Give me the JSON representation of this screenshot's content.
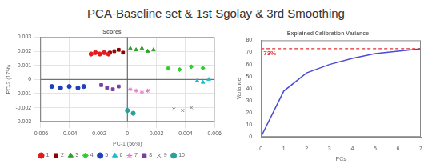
{
  "title": "PCA-Baseline set & 1st Sgolay & 3rd Smoothing",
  "chart_data": [
    {
      "type": "scatter",
      "title": "Scores",
      "x_label": "PC-1 (56%)",
      "y_label": "PC-2 (17%)",
      "xlim": [
        -0.006,
        0.006
      ],
      "xticks": [
        -0.006,
        -0.004,
        -0.002,
        0,
        0.002,
        0.004,
        0.006
      ],
      "ylim": [
        -0.003,
        0.003
      ],
      "yticks": [
        -0.003,
        -0.002,
        -0.001,
        0,
        0.001,
        0.002,
        0.003
      ],
      "grid": true,
      "legend": "bottom",
      "series": [
        {
          "name": "1",
          "color": "#e41a1c",
          "marker": "circle",
          "x": [
            -0.0025,
            -0.0022,
            -0.0019,
            -0.0016,
            -0.0013
          ],
          "values": [
            0.0018,
            0.0019,
            0.0018,
            0.0019,
            0.0018
          ]
        },
        {
          "name": "2",
          "color": "#8b0000",
          "marker": "square",
          "x": [
            -0.0012,
            -0.0009,
            -0.0006,
            -0.0003
          ],
          "values": [
            0.0019,
            0.002,
            0.0021,
            0.0019
          ]
        },
        {
          "name": "3",
          "color": "#2ca02c",
          "marker": "triangle",
          "x": [
            0.0002,
            0.0006,
            0.001,
            0.0014,
            0.0018
          ],
          "values": [
            0.0022,
            0.0021,
            0.0022,
            0.002,
            0.0021
          ]
        },
        {
          "name": "4",
          "color": "#33cc33",
          "marker": "diamond",
          "x": [
            0.0028,
            0.0036,
            0.0044,
            0.0052
          ],
          "values": [
            0.0008,
            0.0007,
            0.0009,
            0.0008
          ]
        },
        {
          "name": "5",
          "color": "#1f3fbf",
          "marker": "circle",
          "x": [
            -0.0052,
            -0.0046,
            -0.004,
            -0.0034,
            -0.003
          ],
          "values": [
            -0.0005,
            -0.0006,
            -0.0005,
            -0.0006,
            -0.0005
          ]
        },
        {
          "name": "6",
          "color": "#17becf",
          "marker": "triangle",
          "x": [
            0.0048,
            0.0052,
            0.0056
          ],
          "values": [
            -0.0001,
            -0.0002,
            0
          ]
        },
        {
          "name": "7",
          "color": "#e377c2",
          "marker": "star",
          "x": [
            0.0002,
            0.0006,
            0.001,
            0.0014
          ],
          "values": [
            -0.0007,
            -0.0008,
            -0.0009,
            -0.0008
          ]
        },
        {
          "name": "8",
          "color": "#7b3fa0",
          "marker": "square",
          "x": [
            -0.0018,
            -0.0014,
            -0.001,
            -0.0006
          ],
          "values": [
            -0.0004,
            -0.0006,
            -0.0007,
            -0.0005
          ]
        },
        {
          "name": "9",
          "color": "#7f7f7f",
          "marker": "cross",
          "x": [
            0.0032,
            0.0038,
            0.0044
          ],
          "values": [
            -0.0021,
            -0.0022,
            -0.002
          ]
        },
        {
          "name": "10",
          "color": "#2aa198",
          "marker": "circle",
          "x": [
            0,
            0.0004
          ],
          "values": [
            -0.0022,
            -0.0024
          ]
        }
      ]
    },
    {
      "type": "line",
      "title": "Explained Calibration Variance",
      "x_label": "PCs",
      "y_label": "Variance",
      "x": [
        0,
        1,
        2,
        3,
        4,
        5,
        6,
        7
      ],
      "values": [
        0,
        38,
        53,
        60,
        65,
        69,
        71,
        73
      ],
      "color": "#4b4bd6",
      "xlim": [
        0,
        7
      ],
      "xticks": [
        0,
        1,
        2,
        3,
        4,
        5,
        6,
        7
      ],
      "ylim": [
        0,
        80
      ],
      "yticks": [
        0,
        10,
        20,
        30,
        40,
        50,
        60,
        70,
        80
      ],
      "grid": false,
      "annotations": [
        {
          "y": 73,
          "label": "73%",
          "color": "#e03030",
          "line_style": "dashed"
        }
      ]
    }
  ]
}
